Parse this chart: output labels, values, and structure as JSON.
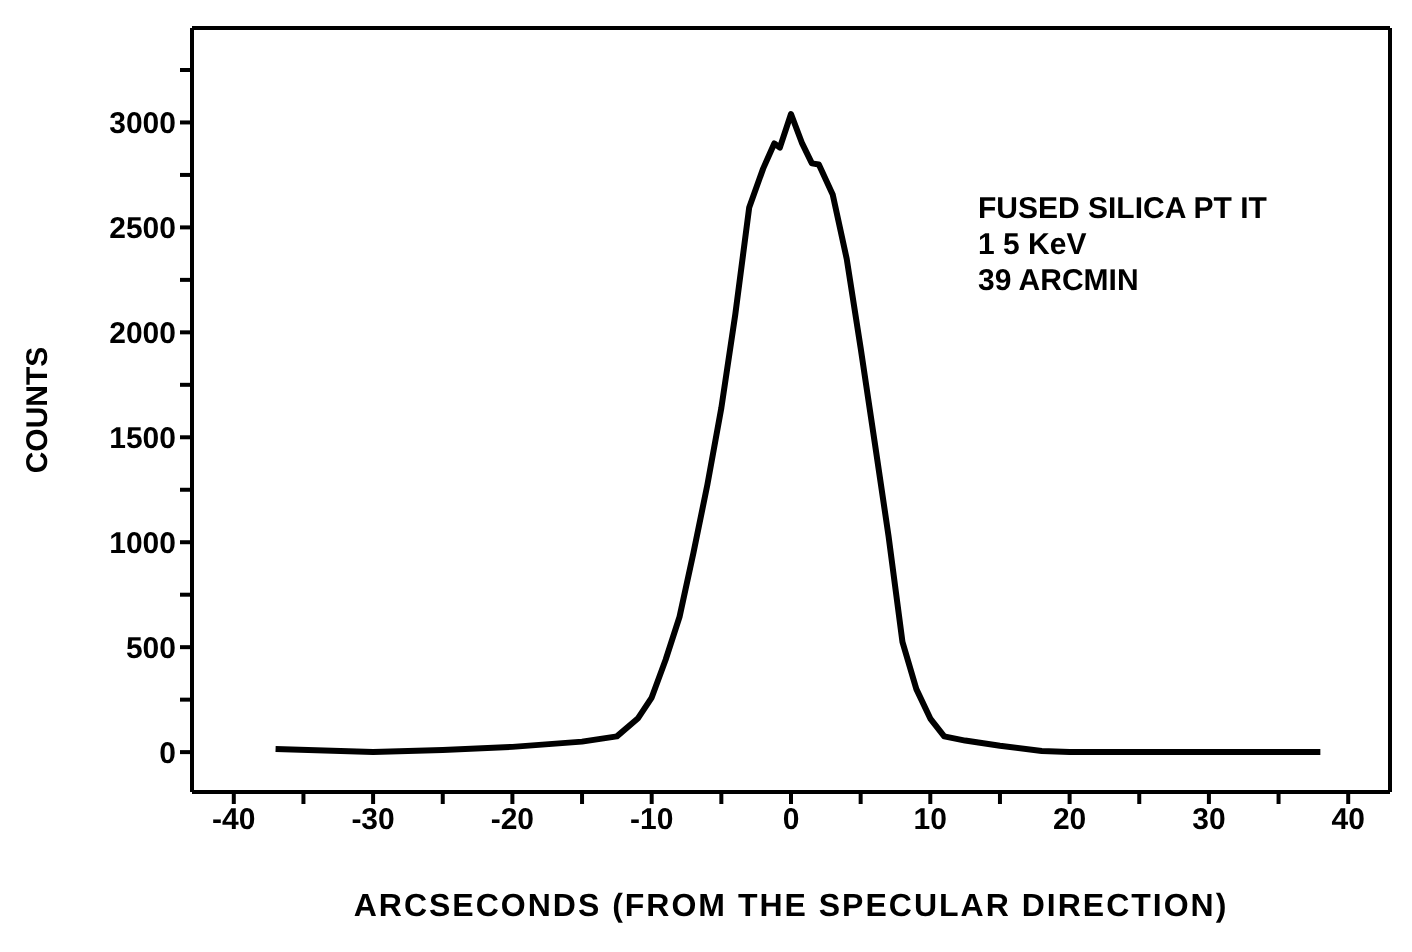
{
  "chart_data": {
    "type": "line",
    "xlabel": "ARCSECONDS (FROM THE SPECULAR DIRECTION)",
    "ylabel": "COUNTS",
    "annotations": [
      "FUSED SILICA PT IT",
      "1 5 KeV",
      "39 ARCMIN"
    ],
    "x": [
      -37,
      -30,
      -25,
      -20,
      -15,
      -12.5,
      -11,
      -10,
      -9,
      -8,
      -7,
      -6,
      -5,
      -4,
      -3,
      -2,
      -1.2,
      -0.8,
      0,
      0.8,
      1.5,
      2,
      3,
      4,
      5,
      6,
      7,
      8,
      9,
      10,
      11,
      12.5,
      15,
      18,
      20,
      25,
      30,
      38
    ],
    "series": [
      {
        "color": "#000000",
        "values": [
          15,
          0,
          10,
          25,
          50,
          75,
          160,
          260,
          440,
          645,
          950,
          1275,
          1640,
          2085,
          2595,
          2780,
          2900,
          2880,
          3040,
          2900,
          2805,
          2800,
          2655,
          2350,
          1925,
          1480,
          1030,
          525,
          300,
          160,
          75,
          55,
          30,
          5,
          0,
          0,
          0,
          0
        ]
      }
    ],
    "xlim": [
      -43,
      43
    ],
    "xticks": [
      -40,
      {
        "value": -35,
        "label": null
      },
      -30,
      {
        "value": -25,
        "label": null
      },
      -20,
      {
        "value": -15,
        "label": null
      },
      -10,
      {
        "value": -5,
        "label": null
      },
      0,
      {
        "value": 5,
        "label": null
      },
      10,
      {
        "value": 15,
        "label": null
      },
      20,
      {
        "value": 25,
        "label": null
      },
      30,
      {
        "value": 35,
        "label": null
      },
      40
    ],
    "ylim": [
      -190,
      3450
    ],
    "yticks": [
      0,
      {
        "value": 250,
        "label": null
      },
      500,
      {
        "value": 750,
        "label": null
      },
      1000,
      {
        "value": 1250,
        "label": null
      },
      1500,
      {
        "value": 1750,
        "label": null
      },
      2000,
      {
        "value": 2250,
        "label": null
      },
      2500,
      {
        "value": 2750,
        "label": null
      },
      3000,
      {
        "value": 3250,
        "label": null
      }
    ],
    "marker": "none",
    "line_style": "solid"
  }
}
